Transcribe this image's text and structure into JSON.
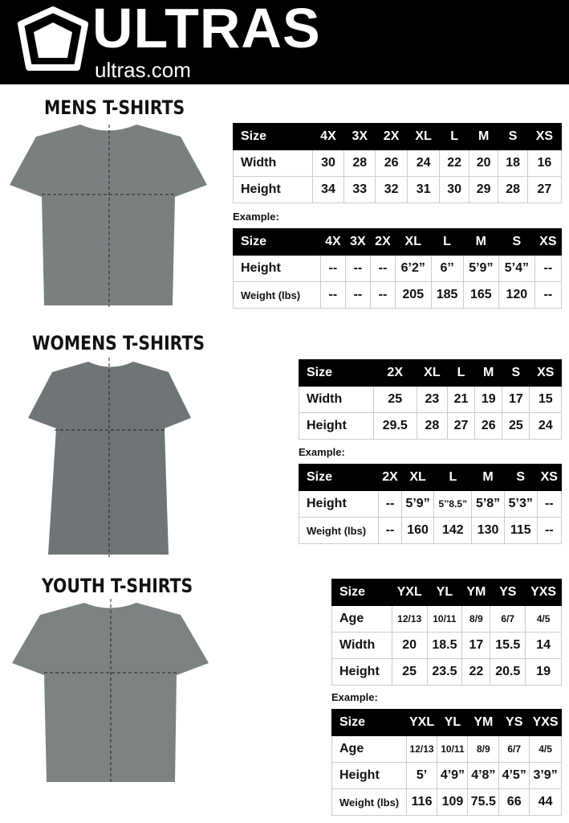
{
  "header": {
    "brand": "ULTRAS",
    "url": "ultras.com",
    "logo_icon": "shield-pentagon-icon"
  },
  "sections": [
    {
      "id": "mens",
      "title": "MENS T-SHIRTS",
      "example_label": "Example:",
      "size_table": {
        "header": [
          "Size",
          "4X",
          "3X",
          "2X",
          "XL",
          "L",
          "M",
          "S",
          "XS"
        ],
        "rows": [
          [
            "Width",
            "30",
            "28",
            "26",
            "24",
            "22",
            "20",
            "18",
            "16"
          ],
          [
            "Height",
            "34",
            "33",
            "32",
            "31",
            "30",
            "29",
            "28",
            "27"
          ]
        ]
      },
      "example_table": {
        "header": [
          "Size",
          "4X",
          "3X",
          "2X",
          "XL",
          "L",
          "M",
          "S",
          "XS"
        ],
        "rows": [
          [
            "Height",
            "--",
            "--",
            "--",
            "6’2”",
            "6’’",
            "5’9”",
            "5’4”",
            "--"
          ],
          [
            "Weight (lbs)",
            "--",
            "--",
            "--",
            "205",
            "185",
            "165",
            "120",
            "--"
          ]
        ]
      }
    },
    {
      "id": "womens",
      "title": "WOMENS T-SHIRTS",
      "example_label": "Example:",
      "size_table": {
        "header": [
          "Size",
          "2X",
          "XL",
          "L",
          "M",
          "S",
          "XS"
        ],
        "rows": [
          [
            "Width",
            "25",
            "23",
            "21",
            "19",
            "17",
            "15"
          ],
          [
            "Height",
            "29.5",
            "28",
            "27",
            "26",
            "25",
            "24"
          ]
        ]
      },
      "example_table": {
        "header": [
          "Size",
          "2X",
          "XL",
          "L",
          "M",
          "S",
          "XS"
        ],
        "rows": [
          [
            "Height",
            "--",
            "5’9”",
            "5’’8.5”",
            "5’8”",
            "5’3”",
            "--"
          ],
          [
            "Weight (lbs)",
            "--",
            "160",
            "142",
            "130",
            "115",
            "--"
          ]
        ]
      }
    },
    {
      "id": "youth",
      "title": "YOUTH T-SHIRTS",
      "example_label": "Example:",
      "size_table": {
        "header": [
          "Size",
          "YXL",
          "YL",
          "YM",
          "YS",
          "YXS"
        ],
        "rows": [
          [
            "Age",
            "12/13",
            "10/11",
            "8/9",
            "6/7",
            "4/5"
          ],
          [
            "Width",
            "20",
            "18.5",
            "17",
            "15.5",
            "14"
          ],
          [
            "Height",
            "25",
            "23.5",
            "22",
            "20.5",
            "19"
          ]
        ]
      },
      "example_table": {
        "header": [
          "Size",
          "YXL",
          "YL",
          "YM",
          "YS",
          "YXS"
        ],
        "rows": [
          [
            "Age",
            "12/13",
            "10/11",
            "8/9",
            "6/7",
            "4/5"
          ],
          [
            "Height",
            "5’",
            "4’9”",
            "4’8”",
            "4’5”",
            "3’9”"
          ],
          [
            "Weight (lbs)",
            "116",
            "109",
            "75.5",
            "66",
            "44"
          ]
        ]
      }
    }
  ],
  "colors": {
    "header_bg": "#000000",
    "shirt": "#7a7f80"
  }
}
